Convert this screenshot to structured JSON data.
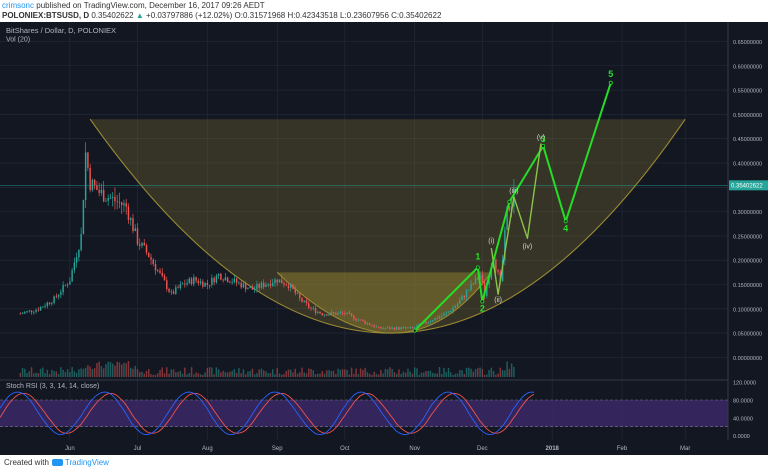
{
  "header": {
    "author": "crimsonc",
    "published_text": "published on TradingView.com, December 16, 2017 09:26 AEDT",
    "symbol": "POLONIEX:BTSUSD, D",
    "last": "0.35402622",
    "change_arrow": "▲",
    "change": "+0.03797886 (+12.02%)",
    "ohlc": "O:0.31571968 H:0.42343518 L:0.23607956 C:0.35402622"
  },
  "chart": {
    "title": "BitShares / Dollar, D, POLONIEX",
    "volume_label": "Vol (20)",
    "indicator_label": "Stoch RSI (3, 3, 14, 14, close)",
    "price_tag": "0.35402622",
    "wave_labels": [
      "1",
      "2",
      "3",
      "4",
      "5",
      "(i)",
      "(ii)",
      "(iii)",
      "(iv)",
      "(v)"
    ]
  },
  "colors": {
    "bg": "#131722",
    "up": "#26a69a",
    "down": "#ef5350",
    "wave": "#26dd26",
    "subwave": "#8bc34a",
    "bowl": "#9a8a34",
    "stoch_k": "#2962ff",
    "stoch_d": "#ef5350",
    "stoch_band": "#3d2a6b"
  },
  "footer": {
    "created_with": "Created with",
    "brand": "TradingView"
  },
  "chart_data": {
    "type": "candlestick",
    "symbol": "BTSUSD",
    "exchange": "POLONIEX",
    "interval": "D",
    "price_axis_ticks": [
      "0.65000000",
      "0.60000000",
      "0.55000000",
      "0.50000000",
      "0.45000000",
      "0.40000000",
      "0.35000000",
      "0.30000000",
      "0.25000000",
      "0.20000000",
      "0.15000000",
      "0.10000000",
      "0.05000000",
      "0.00000000"
    ],
    "price_range": [
      -0.03,
      0.69
    ],
    "time_axis_labels": [
      "Jun",
      "Jul",
      "Aug",
      "Sep",
      "Oct",
      "Nov",
      "Dec",
      "2018",
      "Feb",
      "Mar"
    ],
    "stoch_axis_ticks": [
      "120.0000",
      "80.0000",
      "40.0000",
      "0.0000"
    ],
    "current_price": 0.35402622,
    "price_path": [
      {
        "date": "2017-05-10",
        "price": 0.09
      },
      {
        "date": "2017-05-18",
        "price": 0.1
      },
      {
        "date": "2017-05-25",
        "price": 0.12
      },
      {
        "date": "2017-06-01",
        "price": 0.16
      },
      {
        "date": "2017-06-06",
        "price": 0.25
      },
      {
        "date": "2017-06-08",
        "price": 0.42
      },
      {
        "date": "2017-06-10",
        "price": 0.36
      },
      {
        "date": "2017-06-14",
        "price": 0.34
      },
      {
        "date": "2017-06-18",
        "price": 0.33
      },
      {
        "date": "2017-06-22",
        "price": 0.32
      },
      {
        "date": "2017-06-26",
        "price": 0.31
      },
      {
        "date": "2017-07-01",
        "price": 0.24
      },
      {
        "date": "2017-07-06",
        "price": 0.21
      },
      {
        "date": "2017-07-11",
        "price": 0.17
      },
      {
        "date": "2017-07-16",
        "price": 0.13
      },
      {
        "date": "2017-07-21",
        "price": 0.15
      },
      {
        "date": "2017-07-26",
        "price": 0.16
      },
      {
        "date": "2017-08-01",
        "price": 0.15
      },
      {
        "date": "2017-08-06",
        "price": 0.17
      },
      {
        "date": "2017-08-11",
        "price": 0.16
      },
      {
        "date": "2017-08-16",
        "price": 0.15
      },
      {
        "date": "2017-08-21",
        "price": 0.14
      },
      {
        "date": "2017-08-26",
        "price": 0.15
      },
      {
        "date": "2017-09-01",
        "price": 0.16
      },
      {
        "date": "2017-09-06",
        "price": 0.15
      },
      {
        "date": "2017-09-11",
        "price": 0.12
      },
      {
        "date": "2017-09-16",
        "price": 0.1
      },
      {
        "date": "2017-09-21",
        "price": 0.09
      },
      {
        "date": "2017-09-26",
        "price": 0.09
      },
      {
        "date": "2017-10-01",
        "price": 0.09
      },
      {
        "date": "2017-10-06",
        "price": 0.08
      },
      {
        "date": "2017-10-11",
        "price": 0.07
      },
      {
        "date": "2017-10-16",
        "price": 0.06
      },
      {
        "date": "2017-10-21",
        "price": 0.06
      },
      {
        "date": "2017-10-26",
        "price": 0.06
      },
      {
        "date": "2017-10-31",
        "price": 0.06
      },
      {
        "date": "2017-11-05",
        "price": 0.07
      },
      {
        "date": "2017-11-10",
        "price": 0.08
      },
      {
        "date": "2017-11-15",
        "price": 0.09
      },
      {
        "date": "2017-11-20",
        "price": 0.11
      },
      {
        "date": "2017-11-25",
        "price": 0.14
      },
      {
        "date": "2017-11-30",
        "price": 0.17
      },
      {
        "date": "2017-12-02",
        "price": 0.13
      },
      {
        "date": "2017-12-06",
        "price": 0.21
      },
      {
        "date": "2017-12-09",
        "price": 0.15
      },
      {
        "date": "2017-12-12",
        "price": 0.3
      },
      {
        "date": "2017-12-14",
        "price": 0.32
      },
      {
        "date": "2017-12-15",
        "price": 0.354
      }
    ],
    "wave_projection": [
      {
        "label": "",
        "date": "2017-11-01",
        "price": 0.055
      },
      {
        "label": "1",
        "date": "2017-11-29",
        "price": 0.185
      },
      {
        "label": "2",
        "date": "2017-12-01",
        "price": 0.115
      },
      {
        "label": "",
        "date": "2017-12-13",
        "price": 0.32
      },
      {
        "label": "3",
        "date": "2017-12-28",
        "price": 0.435
      },
      {
        "label": "4",
        "date": "2018-01-07",
        "price": 0.28
      },
      {
        "label": "5",
        "date": "2018-01-27",
        "price": 0.565
      }
    ],
    "subwave_projection": [
      {
        "label": "(i)",
        "date": "2017-12-05",
        "price": 0.225
      },
      {
        "label": "(ii)",
        "date": "2017-12-08",
        "price": 0.13
      },
      {
        "label": "(iii)",
        "date": "2017-12-15",
        "price": 0.33
      },
      {
        "label": "(iv)",
        "date": "2017-12-21",
        "price": 0.245
      },
      {
        "label": "(v)",
        "date": "2017-12-27",
        "price": 0.44
      }
    ],
    "cup_pattern": {
      "left_rim": {
        "date": "2017-06-10",
        "price": 0.49
      },
      "bottom": {
        "date": "2017-10-22",
        "price": 0.05
      },
      "right_rim": {
        "date": "2018-03-01",
        "price": 0.49
      }
    },
    "inner_cup_pattern": {
      "left_rim": {
        "date": "2017-09-01",
        "price": 0.175
      },
      "bottom": {
        "date": "2017-10-26",
        "price": 0.05
      },
      "right_rim": {
        "date": "2017-12-05",
        "price": 0.175
      }
    }
  }
}
